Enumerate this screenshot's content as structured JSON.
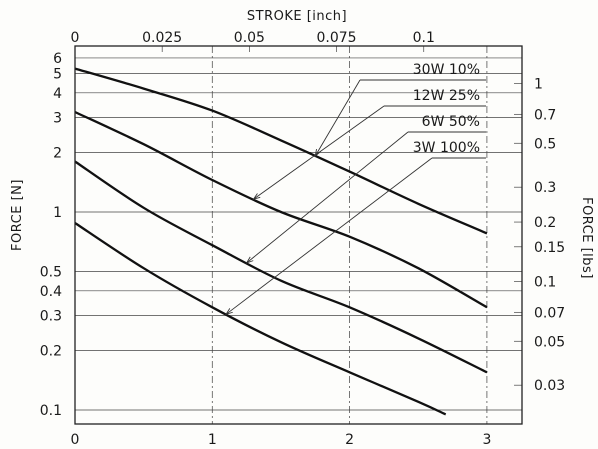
{
  "chart_data": {
    "type": "line",
    "xlabel": "",
    "x2label": "STROKE [inch]",
    "ylabel": "FORCE [N]",
    "y2label": "FORCE [lbs]",
    "x_scale": "linear",
    "y_scale": "log",
    "xlim": [
      0,
      3.25
    ],
    "ylim": [
      0.09,
      6.5
    ],
    "x_ticks": [
      0,
      1,
      2,
      3
    ],
    "x_tick_labels": [
      "0",
      "1",
      "2",
      "3"
    ],
    "x2_ticks": [
      0,
      0.025,
      0.05,
      0.075,
      0.1
    ],
    "x2_tick_labels": [
      "0",
      "0.025",
      "0.05",
      "0.075",
      "0.1"
    ],
    "y_ticks": [
      0.1,
      0.2,
      0.3,
      0.4,
      0.5,
      1,
      2,
      3,
      4,
      5,
      6
    ],
    "y_tick_labels": [
      "0.1",
      "0.2",
      "0.3",
      "0.4",
      "0.5",
      "1",
      "2",
      "3",
      "4",
      "5",
      "6"
    ],
    "y2_ticks": [
      0.03,
      0.05,
      0.07,
      0.1,
      0.15,
      0.2,
      0.3,
      0.5,
      0.7,
      1
    ],
    "y2_tick_labels": [
      "0.03",
      "0.05",
      "0.07",
      "0.1",
      "0.15",
      "0.2",
      "0.3",
      "0.5",
      "0.7",
      "1"
    ],
    "grid": true,
    "legend_position": "top-right",
    "series": [
      {
        "name": "30W  10%",
        "x": [
          0,
          0.5,
          1,
          1.5,
          2,
          2.5,
          3
        ],
        "y": [
          5.3,
          4.2,
          3.25,
          2.3,
          1.6,
          1.1,
          0.78
        ]
      },
      {
        "name": "12W  25%",
        "x": [
          0,
          0.5,
          1,
          1.5,
          2,
          2.5,
          3
        ],
        "y": [
          3.2,
          2.2,
          1.45,
          1.0,
          0.75,
          0.52,
          0.33
        ]
      },
      {
        "name": "6W  50%",
        "x": [
          0,
          0.5,
          1,
          1.5,
          2,
          2.5,
          3
        ],
        "y": [
          1.8,
          1.05,
          0.68,
          0.45,
          0.33,
          0.23,
          0.155
        ]
      },
      {
        "name": "3W  100%",
        "x": [
          0,
          0.5,
          1,
          1.5,
          2,
          2.5,
          2.7
        ],
        "y": [
          0.88,
          0.52,
          0.33,
          0.22,
          0.155,
          0.11,
          0.095
        ]
      }
    ]
  }
}
